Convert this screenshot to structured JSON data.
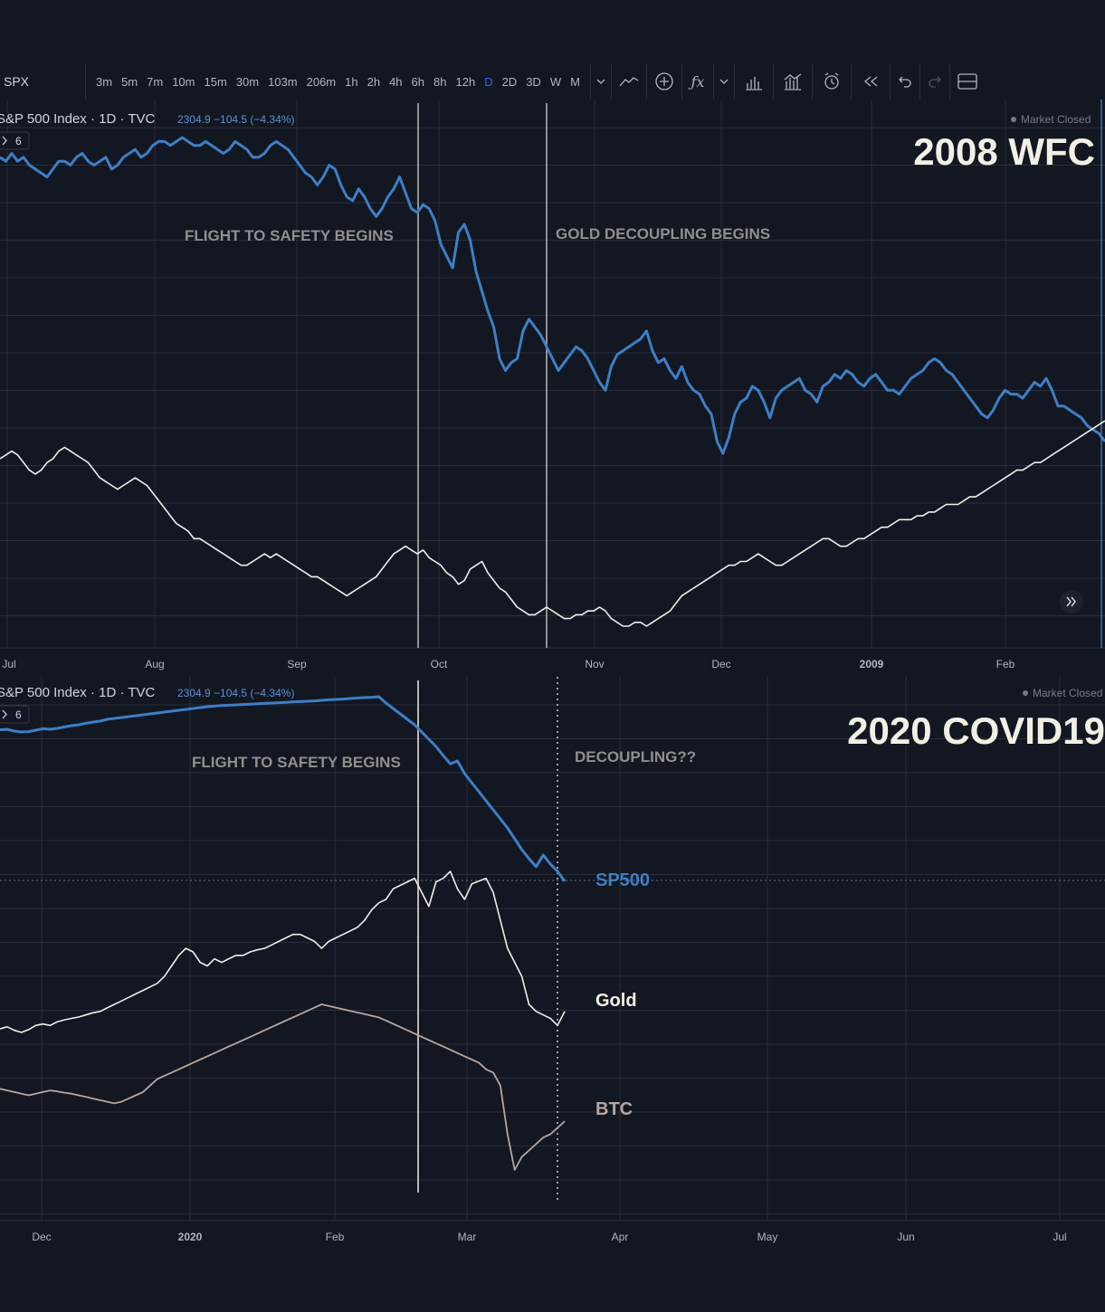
{
  "toolbar": {
    "symbol": "SPX",
    "timeframes": [
      "3m",
      "5m",
      "7m",
      "10m",
      "15m",
      "30m",
      "103m",
      "206m",
      "1h",
      "2h",
      "4h",
      "6h",
      "8h",
      "12h",
      "D",
      "2D",
      "3D",
      "W",
      "M"
    ],
    "active_timeframe": "D",
    "icons": [
      "chevron-down-icon",
      "line-style-icon",
      "add-indicator-icon",
      "function-icon",
      "chevron-down-icon",
      "bar-chart-icon",
      "compare-icon",
      "alert-icon",
      "replay-icon",
      "undo-icon",
      "redo-icon",
      "layout-icon"
    ]
  },
  "colors": {
    "background": "#131722",
    "grid": "#2a2e39",
    "spx": "#3d7fc5",
    "gold": "#f0eee6",
    "btc": "#b4a7a0",
    "annotation": "#8f8f8f",
    "header_value": "#5b93d3"
  },
  "chart_data": [
    {
      "type": "line",
      "title": "2008 WFC",
      "header": {
        "name": "S&P 500 Index · 1D · TVC",
        "value": "2304.9  −104.5 (−4.34%)",
        "status": "Market Closed",
        "indicator_count": "6"
      },
      "x_ticks": [
        "Jul",
        "Aug",
        "Sep",
        "Oct",
        "Nov",
        "Dec",
        "2009",
        "Feb"
      ],
      "annotations": [
        "FLIGHT TO SAFETY BEGINS",
        "GOLD DECOUPLING BEGINS"
      ],
      "series": [
        {
          "values": [
            87,
            86,
            88,
            86,
            87,
            85,
            84,
            83,
            82,
            84,
            86,
            86,
            85,
            87,
            88,
            86,
            85,
            86,
            87,
            84,
            85,
            87,
            88,
            89,
            87,
            88,
            90,
            91,
            91,
            90,
            91,
            92,
            91,
            90,
            90,
            91,
            90,
            89,
            88,
            89,
            91,
            90,
            89,
            87,
            87,
            88,
            90,
            91,
            90,
            89,
            87,
            85,
            83,
            82,
            80,
            82,
            85,
            84,
            80,
            77,
            76,
            79,
            77,
            74,
            72,
            74,
            77,
            79,
            82,
            78,
            74,
            73,
            75,
            74,
            71,
            65,
            62,
            59,
            68,
            70,
            66,
            58,
            53,
            48,
            44,
            36,
            33,
            35,
            36,
            43,
            46,
            44,
            42,
            39,
            36,
            33,
            35,
            37,
            39,
            38,
            36,
            33,
            30,
            28,
            34,
            37,
            38,
            39,
            40,
            41,
            43,
            38,
            35,
            36,
            33,
            31,
            34,
            30,
            28,
            27,
            24,
            22,
            15,
            12,
            16,
            22,
            25,
            26,
            29,
            28,
            25,
            21,
            26,
            28,
            29,
            30,
            31,
            28,
            27,
            25,
            29,
            30,
            32,
            31,
            33,
            32,
            30,
            29,
            31,
            32,
            30,
            28,
            28,
            27,
            29,
            31,
            32,
            33,
            35,
            36,
            35,
            33,
            32,
            30,
            28,
            26,
            24,
            22,
            21,
            23,
            26,
            28,
            27,
            27,
            26,
            28,
            30,
            29,
            31,
            28,
            24,
            24,
            23,
            22,
            21,
            19,
            18,
            17,
            15
          ]
        },
        {
          "values": [
            107,
            108,
            109,
            108,
            106,
            104,
            103,
            104,
            106,
            107,
            109,
            110,
            109,
            108,
            107,
            106,
            104,
            102,
            101,
            100,
            99,
            100,
            101,
            102,
            101,
            100,
            98,
            96,
            94,
            92,
            90,
            89,
            88,
            86,
            86,
            85,
            84,
            83,
            82,
            81,
            80,
            79,
            79,
            80,
            81,
            82,
            81,
            82,
            81,
            80,
            79,
            78,
            77,
            76,
            76,
            75,
            74,
            73,
            72,
            71,
            72,
            73,
            74,
            75,
            76,
            78,
            80,
            82,
            83,
            84,
            83,
            82,
            83,
            81,
            80,
            79,
            77,
            76,
            74,
            75,
            78,
            79,
            80,
            77,
            75,
            73,
            72,
            70,
            68,
            67,
            66,
            66,
            67,
            68,
            67,
            66,
            65,
            65,
            66,
            66,
            67,
            67,
            68,
            67,
            65,
            64,
            63,
            63,
            64,
            64,
            63,
            64,
            65,
            66,
            67,
            69,
            71,
            72,
            73,
            74,
            75,
            76,
            77,
            78,
            79,
            79,
            80,
            80,
            81,
            82,
            81,
            80,
            79,
            79,
            80,
            81,
            82,
            83,
            84,
            85,
            86,
            86,
            85,
            84,
            84,
            85,
            86,
            86,
            87,
            88,
            89,
            89,
            90,
            91,
            91,
            91,
            92,
            92,
            93,
            93,
            94,
            95,
            95,
            95,
            96,
            97,
            97,
            98,
            99,
            100,
            101,
            102,
            103,
            104,
            104,
            105,
            106,
            106,
            107,
            108,
            109,
            110,
            111,
            112,
            113,
            114,
            115,
            116,
            117
          ]
        }
      ]
    },
    {
      "type": "line",
      "title": "2020 COVID19",
      "header": {
        "name": "S&P 500 Index · 1D · TVC",
        "value": "2304.9  −104.5 (−4.34%)",
        "status": "Market Closed",
        "indicator_count": "6"
      },
      "x_ticks": [
        "Dec",
        "2020",
        "Feb",
        "Mar",
        "Apr",
        "May",
        "Jun",
        "Jul"
      ],
      "annotations": [
        "FLIGHT TO SAFETY BEGINS",
        "DECOUPLING??"
      ],
      "series": [
        {
          "name": "SP500",
          "values": [
            3142,
            3145,
            3135,
            3130,
            3132,
            3140,
            3148,
            3145,
            3150,
            3158,
            3165,
            3170,
            3178,
            3185,
            3190,
            3200,
            3205,
            3210,
            3215,
            3220,
            3225,
            3230,
            3235,
            3240,
            3245,
            3250,
            3255,
            3260,
            3265,
            3270,
            3273,
            3276,
            3278,
            3280,
            3282,
            3284,
            3286,
            3288,
            3290,
            3292,
            3294,
            3296,
            3298,
            3300,
            3302,
            3305,
            3308,
            3310,
            3312,
            3315,
            3318,
            3320,
            3322,
            3325,
            3290,
            3260,
            3230,
            3200,
            3170,
            3130,
            3090,
            3050,
            3000,
            2954,
            2970,
            2900,
            2850,
            2800,
            2750,
            2700,
            2650,
            2600,
            2540,
            2480,
            2430,
            2386,
            2450,
            2400,
            2360,
            2305
          ]
        },
        {
          "name": "Gold",
          "values": [
            1465,
            1468,
            1463,
            1460,
            1464,
            1470,
            1472,
            1470,
            1475,
            1478,
            1480,
            1482,
            1485,
            1488,
            1490,
            1495,
            1500,
            1505,
            1510,
            1515,
            1520,
            1525,
            1530,
            1540,
            1555,
            1570,
            1580,
            1575,
            1560,
            1555,
            1565,
            1560,
            1565,
            1570,
            1570,
            1575,
            1578,
            1580,
            1585,
            1590,
            1595,
            1600,
            1600,
            1595,
            1590,
            1580,
            1590,
            1595,
            1600,
            1605,
            1610,
            1620,
            1635,
            1645,
            1650,
            1665,
            1670,
            1675,
            1680,
            1660,
            1640,
            1675,
            1680,
            1690,
            1665,
            1650,
            1672,
            1676,
            1680,
            1660,
            1620,
            1580,
            1560,
            1540,
            1500,
            1490,
            1485,
            1480,
            1470,
            1490
          ]
        },
        {
          "name": "BTC",
          "values": [
            7400,
            7350,
            7300,
            7250,
            7200,
            7250,
            7300,
            7350,
            7320,
            7280,
            7250,
            7200,
            7150,
            7100,
            7050,
            7000,
            6950,
            7000,
            7100,
            7200,
            7300,
            7500,
            7700,
            7800,
            7900,
            8000,
            8100,
            8200,
            8300,
            8400,
            8500,
            8600,
            8700,
            8800,
            8900,
            9000,
            9100,
            9200,
            9300,
            9400,
            9500,
            9600,
            9700,
            9800,
            9900,
            10000,
            9950,
            9900,
            9850,
            9800,
            9750,
            9700,
            9650,
            9600,
            9500,
            9400,
            9300,
            9200,
            9100,
            9000,
            8900,
            8800,
            8700,
            8600,
            8500,
            8400,
            8300,
            8200,
            8000,
            7900,
            7500,
            6000,
            4900,
            5300,
            5500,
            5700,
            5900,
            6000,
            6200,
            6400
          ]
        }
      ]
    }
  ]
}
